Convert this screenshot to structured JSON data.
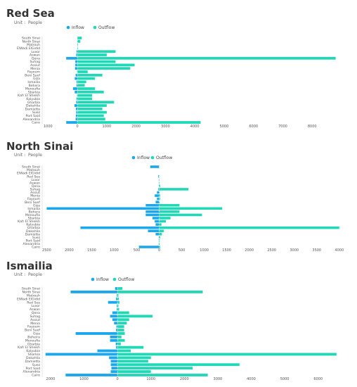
{
  "colors": {
    "inflow": "#1aa7ec",
    "outflow": "#1ed8b6"
  },
  "chart_data": [
    {
      "type": "bar",
      "orientation": "horizontal-diverging",
      "title": "Red Sea",
      "unit": "Unit :  People",
      "legend": [
        "Inflow",
        "Outflow"
      ],
      "categories": [
        "South Sinai",
        "North Sinai",
        "Matrouh",
        "ElWadi ElGidid",
        "Luxor",
        "Aswan",
        "Qena",
        "Suhag",
        "Assiut",
        "Menia",
        "Fayoum",
        "Beni Suef",
        "Giza",
        "Ismailia",
        "Behera",
        "Menoufia",
        "Sharkia",
        "Kafr El Sheikh",
        "Kalyubia",
        "Gharbia",
        "Dakahlia",
        "Damietta",
        "Suez",
        "Port Said",
        "Alexandria",
        "Cairo"
      ],
      "series": [
        {
          "name": "Inflow",
          "values": [
            0,
            0,
            0,
            0,
            30,
            40,
            380,
            70,
            70,
            80,
            10,
            60,
            90,
            30,
            30,
            150,
            90,
            10,
            30,
            40,
            100,
            50,
            40,
            50,
            60,
            380
          ]
        },
        {
          "name": "Outflow",
          "values": [
            150,
            100,
            20,
            20,
            1300,
            1000,
            8800,
            1300,
            1950,
            1800,
            350,
            850,
            600,
            300,
            250,
            600,
            900,
            500,
            500,
            1250,
            1000,
            850,
            1000,
            900,
            950,
            4200
          ]
        }
      ],
      "xlim": [
        -1200,
        9000
      ],
      "ticks": [
        -1000,
        0,
        1000,
        2000,
        3000,
        4000,
        5000,
        6000,
        7000,
        8000
      ],
      "tick_labels": [
        "1000",
        "0",
        "1000",
        "2000",
        "3000",
        "4000",
        "5000",
        "6000",
        "7000",
        "8000"
      ]
    },
    {
      "type": "bar",
      "orientation": "horizontal-diverging",
      "title": "North Sinai",
      "unit": "Unit :  People",
      "legend": [
        "Inflow",
        "Outflow"
      ],
      "categories": [
        "South Sinai",
        "Matrouh",
        "ElWadi ElGidid",
        "Red Sea",
        "Luxor",
        "Aswan",
        "Qena",
        "Suhag",
        "Assiut",
        "Menia",
        "Fayoum",
        "Beni Suef",
        "Giza",
        "Ismailia",
        "Behera",
        "Menoufia",
        "Sharkia",
        "Kafr El Sheikh",
        "Kalyubia",
        "Gharbia",
        "Dakahlia",
        "Damietta",
        "Suez",
        "Port Said",
        "Alexandria",
        "Cairo"
      ],
      "series": [
        {
          "name": "Inflow",
          "values": [
            200,
            0,
            0,
            20,
            10,
            10,
            10,
            20,
            50,
            100,
            50,
            80,
            300,
            2500,
            300,
            300,
            150,
            100,
            80,
            1750,
            250,
            80,
            10,
            10,
            10,
            450
          ]
        },
        {
          "name": "Outflow",
          "values": [
            0,
            0,
            0,
            0,
            0,
            0,
            20,
            650,
            10,
            20,
            20,
            10,
            450,
            1400,
            450,
            950,
            250,
            150,
            50,
            4000,
            100,
            60,
            20,
            10,
            10,
            20
          ]
        }
      ],
      "xlim": [
        -2600,
        4050
      ],
      "ticks": [
        -2500,
        -2000,
        -1500,
        -1000,
        -500,
        0,
        500,
        1000,
        1500,
        2000,
        2500,
        3000,
        3500,
        4000
      ],
      "tick_labels": [
        "2500",
        "2000",
        "1500",
        "1000",
        "500",
        "0",
        "500",
        "1000",
        "1500",
        "2000",
        "2500",
        "3000",
        "3500",
        "4000"
      ]
    },
    {
      "type": "bar",
      "orientation": "horizontal-diverging",
      "title": "Ismailia",
      "unit": "Unit :  People",
      "legend": [
        "Inflow",
        "Outflow"
      ],
      "categories": [
        "South Sinai",
        "North Sinai",
        "Matrouh",
        "ElWadi ElGidid",
        "Red Sea",
        "Luxor",
        "Aswan",
        "Qena",
        "Suhag",
        "Assiut",
        "Menia",
        "Fayoum",
        "Beni Suef",
        "Giza",
        "Beheira",
        "Menoufia",
        "Gharbia",
        "Kafr El Sheikh",
        "Kalyubia",
        "Sharkia",
        "Dakahlia",
        "Damietta",
        "Suez",
        "Port Said",
        "Alexandria",
        "Cairo"
      ],
      "series": [
        {
          "name": "Inflow",
          "values": [
            70,
            1400,
            20,
            40,
            280,
            20,
            20,
            150,
            220,
            150,
            100,
            30,
            40,
            1250,
            220,
            220,
            50,
            40,
            600,
            2150,
            250,
            200,
            200,
            180,
            200,
            1550
          ]
        },
        {
          "name": "Outflow",
          "values": [
            150,
            2550,
            30,
            40,
            60,
            30,
            50,
            350,
            1050,
            350,
            280,
            200,
            200,
            220,
            120,
            220,
            100,
            780,
            400,
            6550,
            1000,
            920,
            3650,
            2250,
            1000,
            2700
          ]
        }
      ],
      "xlim": [
        -2250,
        6700
      ],
      "ticks": [
        -2000,
        -1000,
        0,
        1000,
        2000,
        3000,
        4000,
        5000,
        6000
      ],
      "tick_labels": [
        "2000",
        "1000",
        "0",
        "1000",
        "2000",
        "3000",
        "4000",
        "5000",
        "6000"
      ]
    }
  ]
}
